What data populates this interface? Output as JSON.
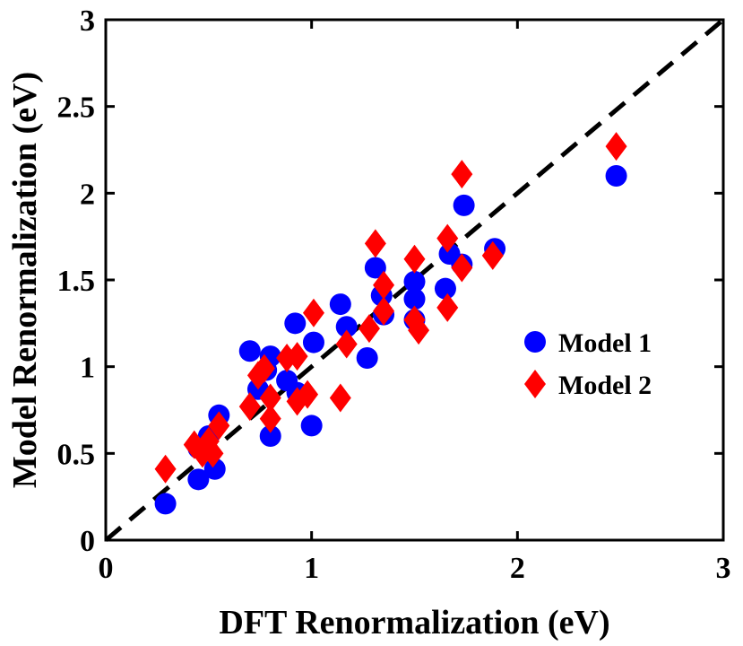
{
  "chart_data": {
    "type": "scatter",
    "xlabel": "DFT Renormalization (eV)",
    "ylabel": "Model Renormalization (eV)",
    "xlim": [
      0,
      3
    ],
    "ylim": [
      0,
      3
    ],
    "xticks": [
      0,
      1,
      2,
      3
    ],
    "xtick_labels": [
      "0",
      "1",
      "2",
      "3"
    ],
    "yticks": [
      0,
      0.5,
      1,
      1.5,
      2,
      2.5,
      3
    ],
    "ytick_labels": [
      "0",
      "0.5",
      "1",
      "1.5",
      "2",
      "2.5",
      "3"
    ],
    "grid": false,
    "legend_position": "right",
    "reference_line": {
      "style": "dashed",
      "color": "#000000",
      "from": [
        0,
        0
      ],
      "to": [
        3,
        3
      ]
    },
    "series": [
      {
        "name": "Model 1",
        "marker": "circle",
        "color": "#0000FF",
        "points": [
          [
            0.29,
            0.21
          ],
          [
            0.45,
            0.35
          ],
          [
            0.53,
            0.41
          ],
          [
            0.55,
            0.72
          ],
          [
            0.5,
            0.6
          ],
          [
            0.45,
            0.53
          ],
          [
            0.7,
            1.09
          ],
          [
            0.74,
            0.87
          ],
          [
            0.8,
            1.06
          ],
          [
            0.8,
            0.6
          ],
          [
            0.78,
            0.98
          ],
          [
            0.88,
            0.92
          ],
          [
            0.92,
            1.25
          ],
          [
            0.93,
            0.85
          ],
          [
            1.0,
            0.66
          ],
          [
            1.01,
            1.14
          ],
          [
            1.14,
            1.36
          ],
          [
            1.17,
            1.23
          ],
          [
            1.27,
            1.05
          ],
          [
            1.31,
            1.57
          ],
          [
            1.34,
            1.41
          ],
          [
            1.35,
            1.3
          ],
          [
            1.5,
            1.49
          ],
          [
            1.5,
            1.39
          ],
          [
            1.5,
            1.27
          ],
          [
            1.65,
            1.45
          ],
          [
            1.67,
            1.65
          ],
          [
            1.73,
            1.59
          ],
          [
            1.74,
            1.93
          ],
          [
            1.89,
            1.68
          ],
          [
            2.48,
            2.1
          ]
        ]
      },
      {
        "name": "Model 2",
        "marker": "diamond",
        "color": "#FF0000",
        "points": [
          [
            0.29,
            0.41
          ],
          [
            0.43,
            0.55
          ],
          [
            0.47,
            0.5
          ],
          [
            0.5,
            0.57
          ],
          [
            0.52,
            0.5
          ],
          [
            0.55,
            0.66
          ],
          [
            0.7,
            0.77
          ],
          [
            0.74,
            0.95
          ],
          [
            0.77,
            0.99
          ],
          [
            0.8,
            0.82
          ],
          [
            0.8,
            0.7
          ],
          [
            0.88,
            1.05
          ],
          [
            0.93,
            1.06
          ],
          [
            0.93,
            0.8
          ],
          [
            0.98,
            0.84
          ],
          [
            1.01,
            1.31
          ],
          [
            1.14,
            0.82
          ],
          [
            1.17,
            1.13
          ],
          [
            1.28,
            1.22
          ],
          [
            1.31,
            1.71
          ],
          [
            1.35,
            1.47
          ],
          [
            1.35,
            1.32
          ],
          [
            1.5,
            1.62
          ],
          [
            1.5,
            1.27
          ],
          [
            1.52,
            1.21
          ],
          [
            1.66,
            1.74
          ],
          [
            1.66,
            1.34
          ],
          [
            1.73,
            2.11
          ],
          [
            1.73,
            1.57
          ],
          [
            1.88,
            1.64
          ],
          [
            2.48,
            2.27
          ]
        ]
      }
    ]
  }
}
